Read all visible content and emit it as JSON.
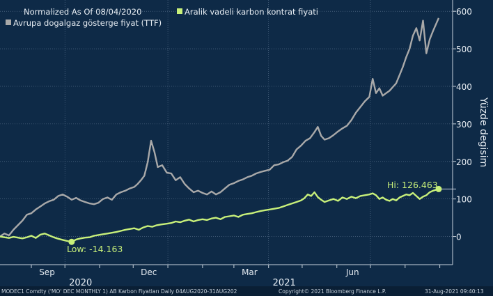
{
  "chart_data": {
    "type": "line",
    "legend": {
      "header": "Normalized As Of 08/04/2020",
      "items": [
        {
          "label": "Aralik vadeli karbon kontrat fiyati",
          "color": "#c8f07a",
          "marker": "square"
        },
        {
          "label": "Avrupa dogalgaz gösterge fiyat (TTF)",
          "color": "#a9a9a9",
          "marker": "square"
        }
      ],
      "placement": "top-left"
    },
    "ylabel": "Yüzde degisim",
    "ylim": [
      -75,
      630
    ],
    "yticks": [
      0,
      100,
      200,
      300,
      400,
      500,
      600
    ],
    "y_axis_side": "right",
    "x_ticks": [
      "Sep",
      "Dec",
      "Mar",
      "Jun"
    ],
    "x_years": [
      "2020",
      "2021"
    ],
    "grid": "dotted",
    "series": [
      {
        "name": "Avrupa dogalgaz gösterge fiyat (TTF)",
        "color": "#a9a9a9",
        "points": [
          [
            "2020-08-04",
            0
          ],
          [
            "2020-08-08",
            8
          ],
          [
            "2020-08-12",
            3
          ],
          [
            "2020-08-16",
            18
          ],
          [
            "2020-08-20",
            30
          ],
          [
            "2020-08-24",
            42
          ],
          [
            "2020-08-28",
            58
          ],
          [
            "2020-09-01",
            62
          ],
          [
            "2020-09-05",
            72
          ],
          [
            "2020-09-09",
            80
          ],
          [
            "2020-09-13",
            88
          ],
          [
            "2020-09-17",
            94
          ],
          [
            "2020-09-21",
            98
          ],
          [
            "2020-09-25",
            108
          ],
          [
            "2020-09-29",
            112
          ],
          [
            "2020-10-03",
            106
          ],
          [
            "2020-10-07",
            98
          ],
          [
            "2020-10-11",
            103
          ],
          [
            "2020-10-15",
            96
          ],
          [
            "2020-10-19",
            92
          ],
          [
            "2020-10-23",
            88
          ],
          [
            "2020-10-27",
            86
          ],
          [
            "2020-10-31",
            90
          ],
          [
            "2020-11-04",
            100
          ],
          [
            "2020-11-08",
            104
          ],
          [
            "2020-11-12",
            98
          ],
          [
            "2020-11-16",
            112
          ],
          [
            "2020-11-20",
            118
          ],
          [
            "2020-11-24",
            122
          ],
          [
            "2020-11-28",
            128
          ],
          [
            "2020-12-02",
            132
          ],
          [
            "2020-12-05",
            140
          ],
          [
            "2020-12-08",
            150
          ],
          [
            "2020-12-11",
            162
          ],
          [
            "2020-12-14",
            198
          ],
          [
            "2020-12-17",
            255
          ],
          [
            "2020-12-20",
            225
          ],
          [
            "2020-12-23",
            185
          ],
          [
            "2020-12-27",
            190
          ],
          [
            "2020-12-31",
            170
          ],
          [
            "2021-01-04",
            168
          ],
          [
            "2021-01-08",
            150
          ],
          [
            "2021-01-12",
            158
          ],
          [
            "2021-01-16",
            140
          ],
          [
            "2021-01-20",
            128
          ],
          [
            "2021-01-24",
            118
          ],
          [
            "2021-01-28",
            122
          ],
          [
            "2021-02-01",
            116
          ],
          [
            "2021-02-05",
            112
          ],
          [
            "2021-02-09",
            120
          ],
          [
            "2021-02-13",
            112
          ],
          [
            "2021-02-17",
            118
          ],
          [
            "2021-02-21",
            128
          ],
          [
            "2021-02-25",
            138
          ],
          [
            "2021-03-01",
            142
          ],
          [
            "2021-03-05",
            148
          ],
          [
            "2021-03-09",
            152
          ],
          [
            "2021-03-13",
            158
          ],
          [
            "2021-03-17",
            162
          ],
          [
            "2021-03-21",
            168
          ],
          [
            "2021-03-25",
            172
          ],
          [
            "2021-03-29",
            175
          ],
          [
            "2021-04-02",
            178
          ],
          [
            "2021-04-06",
            190
          ],
          [
            "2021-04-10",
            192
          ],
          [
            "2021-04-14",
            198
          ],
          [
            "2021-04-18",
            202
          ],
          [
            "2021-04-22",
            212
          ],
          [
            "2021-04-26",
            232
          ],
          [
            "2021-04-30",
            242
          ],
          [
            "2021-05-04",
            255
          ],
          [
            "2021-05-08",
            262
          ],
          [
            "2021-05-12",
            278
          ],
          [
            "2021-05-15",
            292
          ],
          [
            "2021-05-18",
            268
          ],
          [
            "2021-05-21",
            258
          ],
          [
            "2021-05-25",
            262
          ],
          [
            "2021-05-29",
            270
          ],
          [
            "2021-06-02",
            280
          ],
          [
            "2021-06-06",
            288
          ],
          [
            "2021-06-10",
            295
          ],
          [
            "2021-06-14",
            310
          ],
          [
            "2021-06-18",
            330
          ],
          [
            "2021-06-22",
            345
          ],
          [
            "2021-06-26",
            360
          ],
          [
            "2021-06-30",
            372
          ],
          [
            "2021-07-03",
            420
          ],
          [
            "2021-07-06",
            382
          ],
          [
            "2021-07-09",
            395
          ],
          [
            "2021-07-12",
            375
          ],
          [
            "2021-07-15",
            382
          ],
          [
            "2021-07-18",
            388
          ],
          [
            "2021-07-21",
            398
          ],
          [
            "2021-07-24",
            408
          ],
          [
            "2021-07-27",
            430
          ],
          [
            "2021-07-30",
            452
          ],
          [
            "2021-08-02",
            478
          ],
          [
            "2021-08-05",
            500
          ],
          [
            "2021-08-08",
            535
          ],
          [
            "2021-08-11",
            555
          ],
          [
            "2021-08-14",
            522
          ],
          [
            "2021-08-17",
            575
          ],
          [
            "2021-08-20",
            488
          ],
          [
            "2021-08-23",
            525
          ],
          [
            "2021-08-26",
            548
          ],
          [
            "2021-08-31",
            582
          ]
        ]
      },
      {
        "name": "Aralik vadeli karbon kontrat fiyati",
        "color": "#c8f07a",
        "points": [
          [
            "2020-08-04",
            0
          ],
          [
            "2020-08-08",
            -2
          ],
          [
            "2020-08-12",
            -4
          ],
          [
            "2020-08-16",
            -1
          ],
          [
            "2020-08-20",
            -3
          ],
          [
            "2020-08-24",
            -5
          ],
          [
            "2020-08-28",
            -2
          ],
          [
            "2020-09-01",
            2
          ],
          [
            "2020-09-05",
            -4
          ],
          [
            "2020-09-09",
            5
          ],
          [
            "2020-09-13",
            8
          ],
          [
            "2020-09-17",
            3
          ],
          [
            "2020-09-21",
            -2
          ],
          [
            "2020-09-25",
            -6
          ],
          [
            "2020-09-29",
            -9
          ],
          [
            "2020-10-03",
            -12
          ],
          [
            "2020-10-07",
            -14.163
          ],
          [
            "2020-10-11",
            -8
          ],
          [
            "2020-10-15",
            -5
          ],
          [
            "2020-10-19",
            -3
          ],
          [
            "2020-10-23",
            -2
          ],
          [
            "2020-10-27",
            2
          ],
          [
            "2020-10-31",
            4
          ],
          [
            "2020-11-04",
            6
          ],
          [
            "2020-11-08",
            8
          ],
          [
            "2020-11-12",
            10
          ],
          [
            "2020-11-16",
            12
          ],
          [
            "2020-11-20",
            15
          ],
          [
            "2020-11-24",
            18
          ],
          [
            "2020-11-28",
            20
          ],
          [
            "2020-12-02",
            22
          ],
          [
            "2020-12-06",
            18
          ],
          [
            "2020-12-10",
            24
          ],
          [
            "2020-12-14",
            28
          ],
          [
            "2020-12-18",
            26
          ],
          [
            "2020-12-22",
            30
          ],
          [
            "2020-12-26",
            32
          ],
          [
            "2020-12-31",
            34
          ],
          [
            "2021-01-04",
            36
          ],
          [
            "2021-01-08",
            40
          ],
          [
            "2021-01-12",
            38
          ],
          [
            "2021-01-16",
            42
          ],
          [
            "2021-01-20",
            45
          ],
          [
            "2021-01-24",
            40
          ],
          [
            "2021-01-28",
            44
          ],
          [
            "2021-02-01",
            46
          ],
          [
            "2021-02-05",
            44
          ],
          [
            "2021-02-09",
            48
          ],
          [
            "2021-02-13",
            50
          ],
          [
            "2021-02-17",
            46
          ],
          [
            "2021-02-21",
            52
          ],
          [
            "2021-02-25",
            54
          ],
          [
            "2021-03-01",
            56
          ],
          [
            "2021-03-05",
            52
          ],
          [
            "2021-03-09",
            58
          ],
          [
            "2021-03-13",
            60
          ],
          [
            "2021-03-17",
            62
          ],
          [
            "2021-03-21",
            65
          ],
          [
            "2021-03-25",
            68
          ],
          [
            "2021-03-29",
            70
          ],
          [
            "2021-04-02",
            72
          ],
          [
            "2021-04-06",
            74
          ],
          [
            "2021-04-10",
            76
          ],
          [
            "2021-04-14",
            80
          ],
          [
            "2021-04-18",
            84
          ],
          [
            "2021-04-22",
            88
          ],
          [
            "2021-04-26",
            92
          ],
          [
            "2021-04-30",
            96
          ],
          [
            "2021-05-03",
            102
          ],
          [
            "2021-05-06",
            112
          ],
          [
            "2021-05-09",
            108
          ],
          [
            "2021-05-12",
            118
          ],
          [
            "2021-05-15",
            105
          ],
          [
            "2021-05-18",
            98
          ],
          [
            "2021-05-21",
            92
          ],
          [
            "2021-05-25",
            96
          ],
          [
            "2021-05-29",
            100
          ],
          [
            "2021-06-02",
            95
          ],
          [
            "2021-06-06",
            104
          ],
          [
            "2021-06-10",
            100
          ],
          [
            "2021-06-14",
            106
          ],
          [
            "2021-06-18",
            102
          ],
          [
            "2021-06-22",
            108
          ],
          [
            "2021-06-26",
            110
          ],
          [
            "2021-06-30",
            112
          ],
          [
            "2021-07-03",
            115
          ],
          [
            "2021-07-06",
            110
          ],
          [
            "2021-07-09",
            100
          ],
          [
            "2021-07-12",
            104
          ],
          [
            "2021-07-15",
            98
          ],
          [
            "2021-07-18",
            95
          ],
          [
            "2021-07-21",
            100
          ],
          [
            "2021-07-24",
            96
          ],
          [
            "2021-07-27",
            104
          ],
          [
            "2021-07-30",
            108
          ],
          [
            "2021-08-02",
            112
          ],
          [
            "2021-08-05",
            110
          ],
          [
            "2021-08-08",
            116
          ],
          [
            "2021-08-11",
            108
          ],
          [
            "2021-08-14",
            100
          ],
          [
            "2021-08-17",
            106
          ],
          [
            "2021-08-20",
            110
          ],
          [
            "2021-08-23",
            118
          ],
          [
            "2021-08-26",
            122
          ],
          [
            "2021-08-31",
            126.463
          ]
        ]
      }
    ],
    "annotations": [
      {
        "text": "Low: -14.163",
        "date": "2020-10-07",
        "value": -14.163,
        "color": "#c8f07a"
      },
      {
        "text": "Hi: 126.463",
        "date": "2021-08-31",
        "value": 126.463,
        "color": "#c8f07a"
      }
    ]
  },
  "footer": {
    "left": "MODEC1 Comdty ('MO' DEC MONTHLY 1) AB Karbon Fiyatları  Daily 04AUG2020-31AUG202",
    "center": "Copyright© 2021 Bloomberg Finance L.P.",
    "right": "31-Aug-2021 09:40:13"
  }
}
